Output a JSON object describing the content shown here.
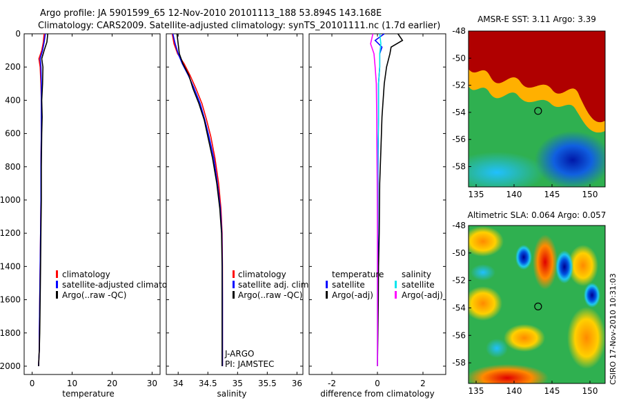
{
  "figure": {
    "title_line1": "Argo profile: JA 5901599_65 12-Nov-2010 20101113_188 53.894S 143.168E",
    "title_line2": "Climatology: CARS2009. Satellite-adjusted climatology: synTS_20101111.nc (1.7d earlier)",
    "side_label": "CSIRO 17-Nov-2010 10:31:03"
  },
  "colors": {
    "climatology": "#ff0000",
    "satellite": "#0000ff",
    "argo": "#000000",
    "sal_satellite": "#00e5ee",
    "sal_argo": "#ff00ff"
  },
  "chart_data": [
    {
      "id": "temperature",
      "type": "line",
      "xlabel": "temperature",
      "xlim": [
        -2,
        32
      ],
      "ylim": [
        0,
        2050
      ],
      "xticks": [
        0,
        10,
        20,
        30
      ],
      "yticks": [
        0,
        200,
        400,
        600,
        800,
        1000,
        1200,
        1400,
        1600,
        1800,
        2000
      ],
      "legend": [
        "climatology",
        "satellite-adjusted climatology",
        "Argo(..raw -QC)"
      ],
      "series": [
        {
          "name": "climatology",
          "color_key": "climatology",
          "x": [
            3.0,
            2.8,
            2.4,
            1.7,
            2.0,
            2.2,
            2.3,
            2.3,
            2.3,
            2.2,
            2.2,
            2.1,
            2.0,
            1.9,
            1.8,
            1.8,
            1.7,
            1.6
          ],
          "y": [
            0,
            50,
            100,
            150,
            200,
            300,
            400,
            500,
            600,
            800,
            1000,
            1200,
            1400,
            1600,
            1800,
            1900,
            1950,
            2000
          ]
        },
        {
          "name": "satellite-adjusted climatology",
          "color_key": "satellite",
          "x": [
            3.3,
            3.0,
            2.6,
            2.0,
            2.2,
            2.3,
            2.3,
            2.3,
            2.3,
            2.2,
            2.2,
            2.1,
            2.0,
            1.9,
            1.8,
            1.8,
            1.7,
            1.6
          ],
          "y": [
            0,
            50,
            100,
            150,
            200,
            300,
            400,
            500,
            600,
            800,
            1000,
            1200,
            1400,
            1600,
            1800,
            1900,
            1950,
            2000
          ]
        },
        {
          "name": "Argo(..raw -QC)",
          "color_key": "argo",
          "x": [
            3.9,
            3.7,
            3.0,
            2.4,
            2.7,
            2.6,
            2.4,
            2.5,
            2.4,
            2.3,
            2.3,
            2.2,
            2.1,
            2.0,
            1.9,
            1.8,
            1.7,
            1.6
          ],
          "y": [
            0,
            50,
            100,
            150,
            200,
            300,
            400,
            500,
            600,
            800,
            1000,
            1200,
            1400,
            1600,
            1800,
            1900,
            1950,
            2000
          ]
        }
      ]
    },
    {
      "id": "salinity",
      "type": "line",
      "xlabel": "salinity",
      "xlim": [
        33.8,
        36.1
      ],
      "ylim": [
        0,
        2050
      ],
      "xticks": [
        34,
        34.5,
        35,
        35.5,
        36
      ],
      "legend": [
        "climatology",
        "satellite adj. clim.",
        "Argo(..raw -QC)"
      ],
      "annotations": [
        "J-ARGO",
        "PI: JAMSTEC"
      ],
      "series": [
        {
          "name": "climatology",
          "color_key": "climatology",
          "x": [
            33.9,
            33.93,
            33.99,
            34.1,
            34.2,
            34.3,
            34.4,
            34.48,
            34.55,
            34.62,
            34.68,
            34.72,
            34.74,
            34.745,
            34.745,
            34.745,
            34.745,
            34.745
          ],
          "y": [
            0,
            60,
            120,
            180,
            250,
            330,
            420,
            520,
            620,
            750,
            900,
            1050,
            1200,
            1400,
            1600,
            1800,
            1950,
            2000
          ]
        },
        {
          "name": "satellite adj. clim.",
          "color_key": "satellite",
          "x": [
            33.91,
            33.95,
            34.0,
            34.07,
            34.17,
            34.27,
            34.37,
            34.45,
            34.52,
            34.6,
            34.66,
            34.71,
            34.735,
            34.743,
            34.745,
            34.745,
            34.745,
            34.745
          ],
          "y": [
            0,
            60,
            120,
            180,
            250,
            330,
            420,
            520,
            620,
            750,
            900,
            1050,
            1200,
            1400,
            1600,
            1800,
            1950,
            2000
          ]
        },
        {
          "name": "Argo(..raw -QC)",
          "color_key": "argo",
          "x": [
            33.98,
            34.0,
            34.02,
            34.08,
            34.18,
            34.25,
            34.35,
            34.44,
            34.5,
            34.58,
            34.65,
            34.7,
            34.73,
            34.74,
            34.74,
            34.74,
            34.74,
            34.74
          ],
          "y": [
            0,
            60,
            120,
            180,
            250,
            330,
            420,
            520,
            620,
            750,
            900,
            1050,
            1200,
            1400,
            1600,
            1800,
            1950,
            2000
          ]
        }
      ]
    },
    {
      "id": "difference",
      "type": "line",
      "xlabel": "difference from climatology",
      "xlim": [
        -3,
        3
      ],
      "ylim": [
        0,
        2050
      ],
      "xticks": [
        -2,
        0,
        2
      ],
      "legend_left_title": "temperature",
      "legend_right_title": "salinity",
      "legend_left": [
        "satellite",
        "Argo(-adj)"
      ],
      "legend_right": [
        "satellite",
        "Argo(-adj)"
      ],
      "series": [
        {
          "name": "temperature satellite",
          "color_key": "satellite",
          "x": [
            0.3,
            -0.1,
            0.2,
            0.1,
            0.1,
            0.05,
            0.05,
            0.03,
            0.02,
            0.02,
            0.02,
            0.01,
            0.01,
            0.0
          ],
          "y": [
            0,
            40,
            80,
            120,
            200,
            300,
            500,
            700,
            900,
            1200,
            1400,
            1600,
            1800,
            2000
          ]
        },
        {
          "name": "temperature Argo(-adj)",
          "color_key": "argo",
          "x": [
            0.9,
            1.1,
            0.6,
            0.55,
            0.4,
            0.3,
            0.2,
            0.15,
            0.1,
            0.08,
            0.05,
            0.04,
            0.02,
            0.0
          ],
          "y": [
            0,
            40,
            80,
            120,
            200,
            300,
            500,
            700,
            900,
            1200,
            1400,
            1600,
            1800,
            2000
          ]
        },
        {
          "name": "salinity satellite",
          "color_key": "sal_satellite",
          "x": [
            0.1,
            0.15,
            0.1,
            0.1,
            0.05,
            0.05,
            0.02,
            0.01,
            0.01,
            0.0,
            0.0,
            0.0
          ],
          "y": [
            0,
            60,
            120,
            200,
            300,
            500,
            700,
            900,
            1200,
            1500,
            1800,
            2000
          ]
        },
        {
          "name": "salinity Argo(-adj)",
          "color_key": "sal_argo",
          "x": [
            -0.2,
            -0.3,
            -0.15,
            -0.1,
            -0.05,
            -0.03,
            -0.02,
            -0.01,
            0.0,
            0.0,
            0.0,
            0.0
          ],
          "y": [
            0,
            60,
            120,
            200,
            300,
            500,
            700,
            900,
            1200,
            1500,
            1800,
            2000
          ]
        }
      ]
    },
    {
      "id": "sst_map",
      "type": "heatmap",
      "title": "AMSR-E SST: 3.11  Argo: 3.39",
      "xlim": [
        134,
        152
      ],
      "ylim": [
        -59.5,
        -48
      ],
      "xticks": [
        135,
        140,
        145,
        150
      ],
      "yticks": [
        -48,
        -50,
        -52,
        -54,
        -56,
        -58
      ],
      "marker": {
        "lon": 143.168,
        "lat": -53.894
      }
    },
    {
      "id": "sla_map",
      "type": "heatmap",
      "title": "Altimetric SLA: 0.064  Argo: 0.057",
      "xlim": [
        134,
        152
      ],
      "ylim": [
        -59.5,
        -48
      ],
      "xticks": [
        135,
        140,
        145,
        150
      ],
      "yticks": [
        -48,
        -50,
        -52,
        -54,
        -56,
        -58
      ],
      "marker": {
        "lon": 143.168,
        "lat": -53.894
      }
    }
  ]
}
